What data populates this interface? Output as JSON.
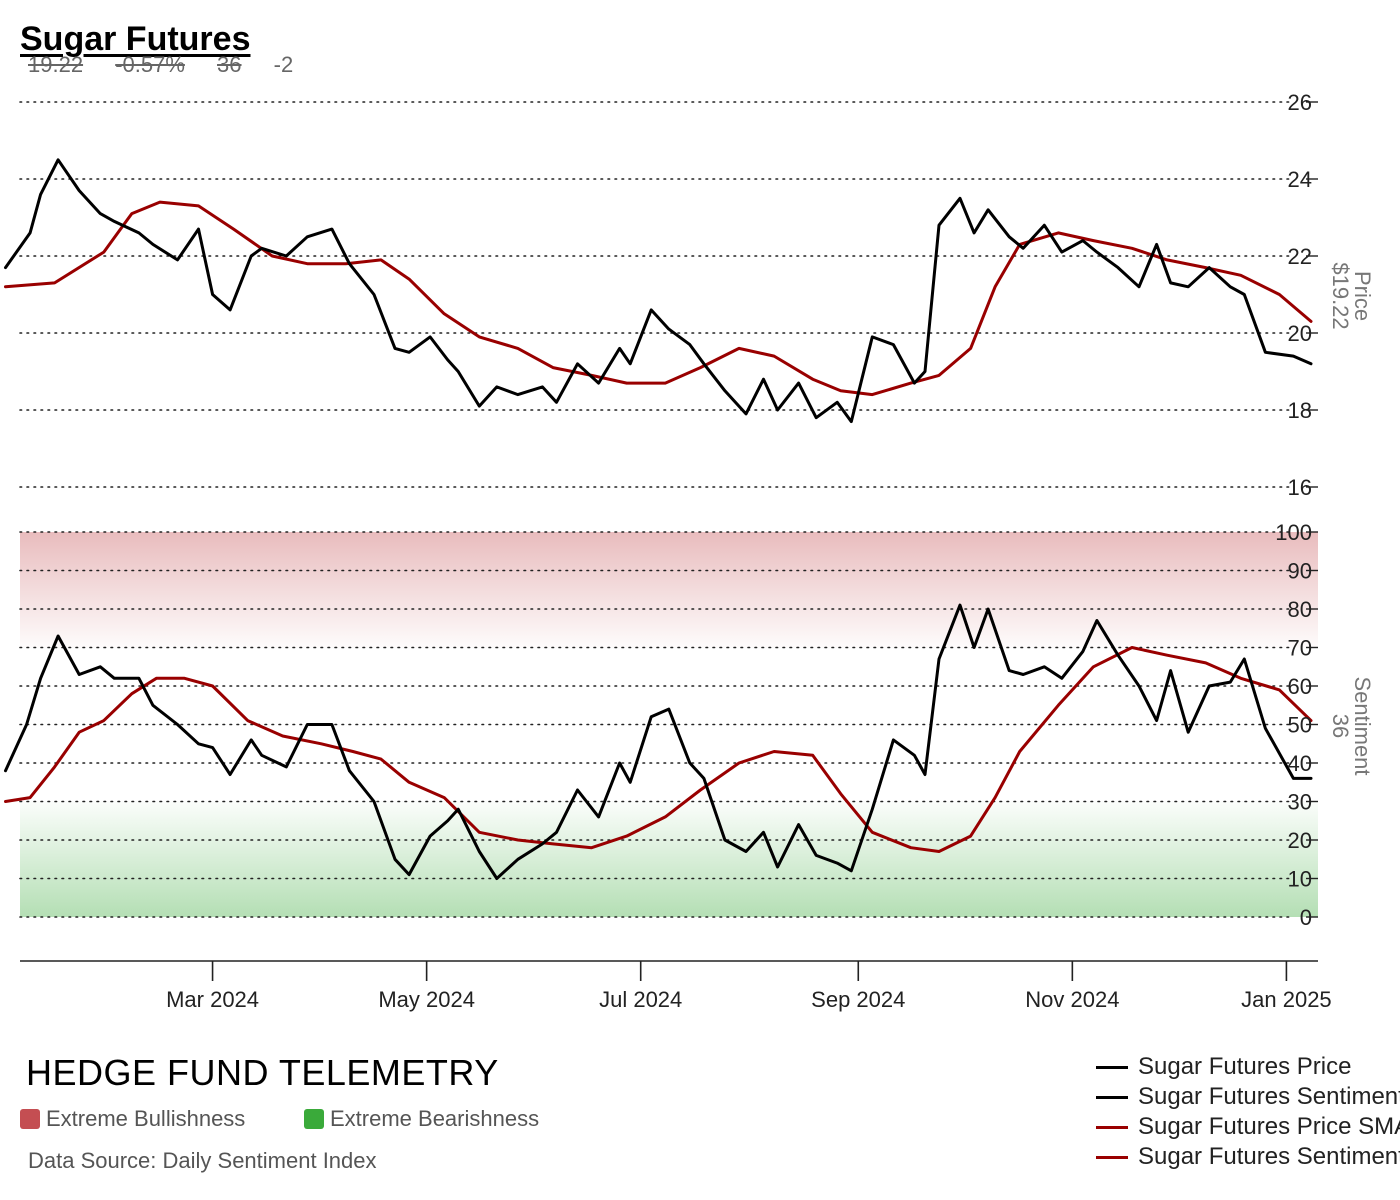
{
  "header": {
    "title": "Sugar Futures",
    "last_price": "19.22",
    "change_pct": "-0.57%",
    "sentiment": "36",
    "sentiment_change": "-2"
  },
  "footer": {
    "brand": "HEDGE FUND TELEMETRY",
    "bull_label": "Extreme Bullishness",
    "bear_label": "Extreme Bearishness",
    "source": "Data Source: Daily Sentiment Index"
  },
  "colors": {
    "price": "#000000",
    "sentiment": "#000000",
    "sma": "#990000",
    "bullish_zone": "#c44e52",
    "bearish_zone": "#3aaa3a"
  },
  "chart_data": [
    {
      "type": "line",
      "panel": "price",
      "ylabel": "Price",
      "last_value_label": "$19.22",
      "ylim": [
        16,
        26
      ],
      "yticks": [
        16,
        18,
        20,
        22,
        24,
        26
      ],
      "grid": true,
      "series": [
        {
          "name": "Sugar Futures Price",
          "color": "#000000",
          "x": [
            "2024-01-02",
            "2024-01-09",
            "2024-01-12",
            "2024-01-17",
            "2024-01-23",
            "2024-01-29",
            "2024-02-02",
            "2024-02-09",
            "2024-02-13",
            "2024-02-20",
            "2024-02-26",
            "2024-03-01",
            "2024-03-06",
            "2024-03-12",
            "2024-03-15",
            "2024-03-22",
            "2024-03-28",
            "2024-04-04",
            "2024-04-09",
            "2024-04-16",
            "2024-04-22",
            "2024-04-26",
            "2024-05-02",
            "2024-05-07",
            "2024-05-10",
            "2024-05-16",
            "2024-05-21",
            "2024-05-27",
            "2024-06-03",
            "2024-06-07",
            "2024-06-13",
            "2024-06-19",
            "2024-06-25",
            "2024-06-28",
            "2024-07-04",
            "2024-07-09",
            "2024-07-15",
            "2024-07-19",
            "2024-07-25",
            "2024-07-31",
            "2024-08-05",
            "2024-08-09",
            "2024-08-15",
            "2024-08-20",
            "2024-08-26",
            "2024-08-30",
            "2024-09-05",
            "2024-09-11",
            "2024-09-17",
            "2024-09-20",
            "2024-09-24",
            "2024-09-30",
            "2024-10-04",
            "2024-10-08",
            "2024-10-14",
            "2024-10-18",
            "2024-10-24",
            "2024-10-29",
            "2024-11-04",
            "2024-11-08",
            "2024-11-14",
            "2024-11-20",
            "2024-11-25",
            "2024-11-29",
            "2024-12-04",
            "2024-12-10",
            "2024-12-16",
            "2024-12-20",
            "2024-12-26",
            "2025-01-03",
            "2025-01-08"
          ],
          "y": [
            21.7,
            22.6,
            23.6,
            24.5,
            23.7,
            23.1,
            22.9,
            22.6,
            22.3,
            21.9,
            22.7,
            21.0,
            20.6,
            22.0,
            22.2,
            22.0,
            22.5,
            22.7,
            21.8,
            21.0,
            19.6,
            19.5,
            19.9,
            19.3,
            19.0,
            18.1,
            18.6,
            18.4,
            18.6,
            18.2,
            19.2,
            18.7,
            19.6,
            19.2,
            20.6,
            20.1,
            19.7,
            19.2,
            18.5,
            17.9,
            18.8,
            18.0,
            18.7,
            17.8,
            18.2,
            17.7,
            19.9,
            19.7,
            18.7,
            19.0,
            22.8,
            23.5,
            22.6,
            23.2,
            22.5,
            22.2,
            22.8,
            22.1,
            22.4,
            22.1,
            21.7,
            21.2,
            22.3,
            21.3,
            21.2,
            21.7,
            21.2,
            21.0,
            19.5,
            19.4,
            19.2
          ]
        },
        {
          "name": "Sugar Futures Price SMA",
          "color": "#990000",
          "x": [
            "2024-01-02",
            "2024-01-16",
            "2024-01-30",
            "2024-02-07",
            "2024-02-15",
            "2024-02-26",
            "2024-03-07",
            "2024-03-18",
            "2024-03-28",
            "2024-04-08",
            "2024-04-18",
            "2024-04-26",
            "2024-05-06",
            "2024-05-16",
            "2024-05-27",
            "2024-06-06",
            "2024-06-17",
            "2024-06-27",
            "2024-07-08",
            "2024-07-18",
            "2024-07-29",
            "2024-08-08",
            "2024-08-19",
            "2024-08-27",
            "2024-09-05",
            "2024-09-16",
            "2024-09-24",
            "2024-10-03",
            "2024-10-10",
            "2024-10-17",
            "2024-10-28",
            "2024-11-07",
            "2024-11-18",
            "2024-11-28",
            "2024-12-09",
            "2024-12-19",
            "2024-12-30",
            "2025-01-08"
          ],
          "y": [
            21.2,
            21.3,
            22.1,
            23.1,
            23.4,
            23.3,
            22.7,
            22.0,
            21.8,
            21.8,
            21.9,
            21.4,
            20.5,
            19.9,
            19.6,
            19.1,
            18.9,
            18.7,
            18.7,
            19.1,
            19.6,
            19.4,
            18.8,
            18.5,
            18.4,
            18.7,
            18.9,
            19.6,
            21.2,
            22.3,
            22.6,
            22.4,
            22.2,
            21.9,
            21.7,
            21.5,
            21.0,
            20.3
          ]
        }
      ]
    },
    {
      "type": "line",
      "panel": "sentiment",
      "ylabel": "Sentiment",
      "last_value_label": "36",
      "ylim": [
        0,
        100
      ],
      "yticks": [
        0,
        10,
        20,
        30,
        40,
        50,
        60,
        70,
        80,
        90,
        100
      ],
      "grid": true,
      "bands": [
        {
          "label": "Extreme Bullishness",
          "from": 70,
          "to": 100,
          "color": "#c44e52"
        },
        {
          "label": "Extreme Bearishness",
          "from": 0,
          "to": 30,
          "color": "#3aaa3a"
        }
      ],
      "series": [
        {
          "name": "Sugar Futures Sentiment",
          "color": "#000000",
          "x": [
            "2024-01-02",
            "2024-01-08",
            "2024-01-12",
            "2024-01-17",
            "2024-01-23",
            "2024-01-29",
            "2024-02-02",
            "2024-02-09",
            "2024-02-13",
            "2024-02-20",
            "2024-02-26",
            "2024-03-01",
            "2024-03-06",
            "2024-03-12",
            "2024-03-15",
            "2024-03-22",
            "2024-03-28",
            "2024-04-04",
            "2024-04-09",
            "2024-04-16",
            "2024-04-22",
            "2024-04-26",
            "2024-05-02",
            "2024-05-07",
            "2024-05-10",
            "2024-05-16",
            "2024-05-21",
            "2024-05-27",
            "2024-06-03",
            "2024-06-07",
            "2024-06-13",
            "2024-06-19",
            "2024-06-25",
            "2024-06-28",
            "2024-07-04",
            "2024-07-09",
            "2024-07-15",
            "2024-07-19",
            "2024-07-25",
            "2024-07-31",
            "2024-08-05",
            "2024-08-09",
            "2024-08-15",
            "2024-08-20",
            "2024-08-26",
            "2024-08-30",
            "2024-09-05",
            "2024-09-11",
            "2024-09-17",
            "2024-09-20",
            "2024-09-24",
            "2024-09-30",
            "2024-10-04",
            "2024-10-08",
            "2024-10-14",
            "2024-10-18",
            "2024-10-24",
            "2024-10-29",
            "2024-11-04",
            "2024-11-08",
            "2024-11-14",
            "2024-11-20",
            "2024-11-25",
            "2024-11-29",
            "2024-12-04",
            "2024-12-10",
            "2024-12-16",
            "2024-12-20",
            "2024-12-26",
            "2025-01-03",
            "2025-01-08"
          ],
          "y": [
            38,
            50,
            62,
            73,
            63,
            65,
            62,
            62,
            55,
            50,
            45,
            44,
            37,
            46,
            42,
            39,
            50,
            50,
            38,
            30,
            15,
            11,
            21,
            25,
            28,
            17,
            10,
            15,
            19,
            22,
            33,
            26,
            40,
            35,
            52,
            54,
            40,
            36,
            20,
            17,
            22,
            13,
            24,
            16,
            14,
            12,
            28,
            46,
            42,
            37,
            67,
            81,
            70,
            80,
            64,
            63,
            65,
            62,
            69,
            77,
            68,
            60,
            51,
            64,
            48,
            60,
            61,
            67,
            49,
            36,
            36
          ]
        },
        {
          "name": "Sugar Futures Sentiment SMA",
          "color": "#990000",
          "x": [
            "2024-01-02",
            "2024-01-09",
            "2024-01-16",
            "2024-01-23",
            "2024-01-30",
            "2024-02-07",
            "2024-02-14",
            "2024-02-22",
            "2024-03-01",
            "2024-03-11",
            "2024-03-21",
            "2024-04-01",
            "2024-04-10",
            "2024-04-18",
            "2024-04-26",
            "2024-05-06",
            "2024-05-16",
            "2024-05-27",
            "2024-06-06",
            "2024-06-17",
            "2024-06-27",
            "2024-07-08",
            "2024-07-18",
            "2024-07-29",
            "2024-08-08",
            "2024-08-19",
            "2024-08-27",
            "2024-09-05",
            "2024-09-16",
            "2024-09-24",
            "2024-10-03",
            "2024-10-10",
            "2024-10-17",
            "2024-10-28",
            "2024-11-07",
            "2024-11-18",
            "2024-11-28",
            "2024-12-09",
            "2024-12-19",
            "2024-12-30",
            "2025-01-08"
          ],
          "y": [
            30,
            31,
            39,
            48,
            51,
            58,
            62,
            62,
            60,
            51,
            47,
            45,
            43,
            41,
            35,
            31,
            22,
            20,
            19,
            18,
            21,
            26,
            33,
            40,
            43,
            42,
            32,
            22,
            18,
            17,
            21,
            31,
            43,
            55,
            65,
            70,
            68,
            66,
            62,
            59,
            51
          ]
        }
      ]
    }
  ],
  "x_axis": {
    "tick_labels": [
      "Mar 2024",
      "May 2024",
      "Jul 2024",
      "Sep 2024",
      "Nov 2024",
      "Jan 2025"
    ],
    "tick_dates": [
      "2024-03-01",
      "2024-05-01",
      "2024-07-01",
      "2024-09-01",
      "2024-11-01",
      "2025-01-01"
    ]
  }
}
